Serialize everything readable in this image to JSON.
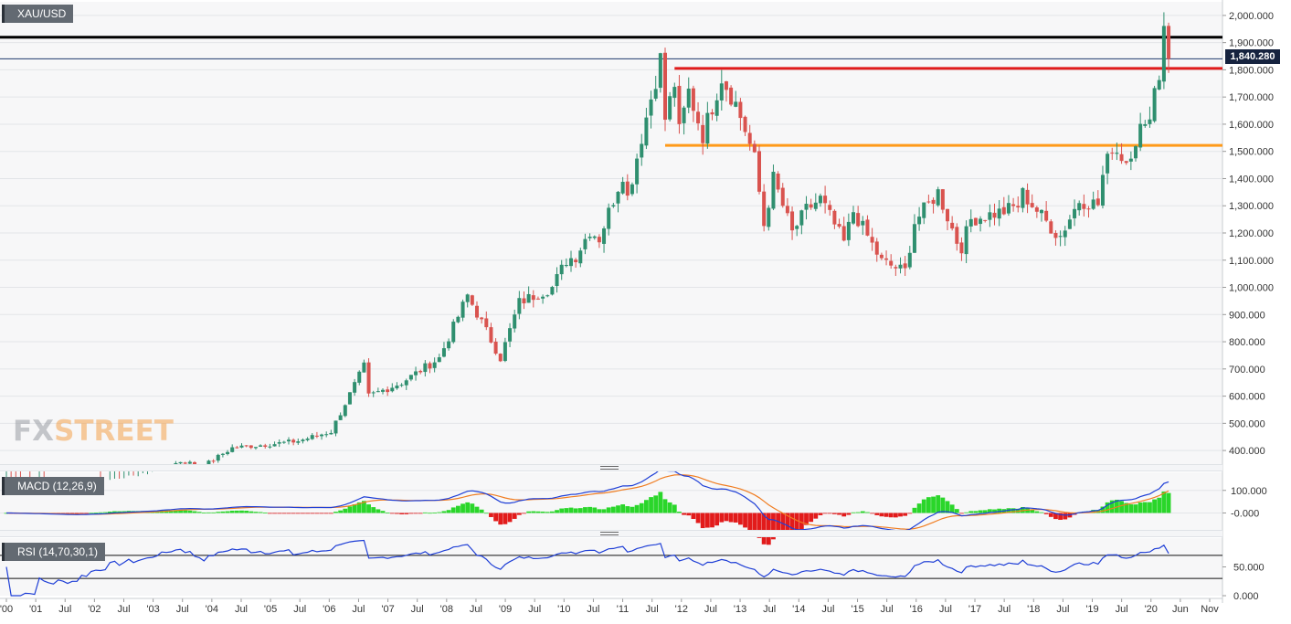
{
  "instrument": {
    "symbol": "XAU/USD",
    "last_price_label": "1,840.280"
  },
  "watermark": {
    "part1": "FX",
    "part2": "STREET"
  },
  "panes": {
    "price": {
      "label": "XAU/USD"
    },
    "macd": {
      "label": "MACD (12,26,9)"
    },
    "rsi": {
      "label": "RSI (14,70,30,1)"
    }
  },
  "chart_data": [
    {
      "type": "candlestick",
      "title": "XAU/USD",
      "interval": "monthly",
      "ylim": [
        350,
        2050
      ],
      "y_ticks": [
        "2,000.000",
        "1,900.000",
        "1,800.000",
        "1,700.000",
        "1,600.000",
        "1,500.000",
        "1,400.000",
        "1,300.000",
        "1,200.000",
        "1,100.000",
        "1,000.000",
        "900.000",
        "800.000",
        "700.000",
        "600.000",
        "500.000",
        "400.000"
      ],
      "last_price": 1840.28,
      "horizontal_levels": [
        {
          "value": 1920,
          "color": "#000000",
          "from": "2000-01"
        },
        {
          "value": 1840.28,
          "color": "#1f3a6e",
          "from": "2000-01"
        },
        {
          "value": 1805,
          "color": "#e01b1b",
          "from": "2011-11"
        },
        {
          "value": 1522,
          "color": "#ff9a1a",
          "from": "2011-09"
        }
      ],
      "anchors": [
        [
          "2000-01",
          290
        ],
        [
          "2001-03",
          260
        ],
        [
          "2002-07",
          310
        ],
        [
          "2003-02",
          360
        ],
        [
          "2003-07",
          345
        ],
        [
          "2004-01",
          410
        ],
        [
          "2004-10",
          425
        ],
        [
          "2005-03",
          435
        ],
        [
          "2005-10",
          470
        ],
        [
          "2006-05",
          710
        ],
        [
          "2006-06",
          600
        ],
        [
          "2007-01",
          650
        ],
        [
          "2007-09",
          740
        ],
        [
          "2008-03",
          970
        ],
        [
          "2008-10",
          740
        ],
        [
          "2009-02",
          945
        ],
        [
          "2009-09",
          1000
        ],
        [
          "2009-12",
          1100
        ],
        [
          "2010-02",
          1115
        ],
        [
          "2010-05",
          1210
        ],
        [
          "2010-07",
          1180
        ],
        [
          "2010-12",
          1420
        ],
        [
          "2011-01",
          1330
        ],
        [
          "2011-04",
          1555
        ],
        [
          "2011-08",
          1840
        ],
        [
          "2011-09",
          1620
        ],
        [
          "2011-11",
          1750
        ],
        [
          "2011-12",
          1570
        ],
        [
          "2012-02",
          1720
        ],
        [
          "2012-05",
          1560
        ],
        [
          "2012-09",
          1775
        ],
        [
          "2012-12",
          1675
        ],
        [
          "2013-02",
          1580
        ],
        [
          "2013-04",
          1470
        ],
        [
          "2013-06",
          1230
        ],
        [
          "2013-08",
          1400
        ],
        [
          "2013-12",
          1200
        ],
        [
          "2014-03",
          1285
        ],
        [
          "2014-06",
          1325
        ],
        [
          "2014-11",
          1165
        ],
        [
          "2015-01",
          1280
        ],
        [
          "2015-07",
          1095
        ],
        [
          "2015-11",
          1065
        ],
        [
          "2015-12",
          1060
        ],
        [
          "2016-02",
          1240
        ],
        [
          "2016-07",
          1350
        ],
        [
          "2016-11",
          1170
        ],
        [
          "2016-12",
          1150
        ],
        [
          "2017-02",
          1250
        ],
        [
          "2017-09",
          1280
        ],
        [
          "2017-12",
          1300
        ],
        [
          "2018-01",
          1345
        ],
        [
          "2018-08",
          1200
        ],
        [
          "2018-09",
          1190
        ],
        [
          "2019-01",
          1320
        ],
        [
          "2019-05",
          1305
        ],
        [
          "2019-06",
          1410
        ],
        [
          "2019-08",
          1520
        ],
        [
          "2019-11",
          1465
        ],
        [
          "2020-02",
          1585
        ],
        [
          "2020-03",
          1575
        ],
        [
          "2020-05",
          1730
        ],
        [
          "2020-06",
          1780
        ],
        [
          "2020-07",
          1975
        ],
        [
          "2020-08",
          1840.28
        ]
      ],
      "x_ticks": [
        "'00",
        "'01",
        "Jul",
        "'02",
        "Jul",
        "'03",
        "Jul",
        "'04",
        "Jul",
        "'05",
        "Jul",
        "'06",
        "Jul",
        "'07",
        "Jul",
        "'08",
        "Jul",
        "'09",
        "Jul",
        "'10",
        "Jul",
        "'11",
        "Jul",
        "'12",
        "Jul",
        "'13",
        "Jul",
        "'14",
        "Jul",
        "'15",
        "Jul",
        "'16",
        "Jul",
        "'17",
        "Jul",
        "'18",
        "Jul",
        "'19",
        "Jul",
        "'20",
        "Jun",
        "Nov"
      ],
      "up_color": "#2f8f6f",
      "down_color": "#d9534f"
    },
    {
      "type": "line+histogram",
      "title": "MACD (12,26,9)",
      "params": [
        12,
        26,
        9
      ],
      "series": [
        {
          "role": "macd",
          "color": "#1f3fd6"
        },
        {
          "role": "signal",
          "color": "#f07d21"
        },
        {
          "role": "histogram",
          "up_color": "#2ad62a",
          "down_color": "#e21b1b"
        }
      ],
      "y_ticks": [
        "100.000",
        "-0.000"
      ],
      "ylim": [
        -75,
        180
      ]
    },
    {
      "type": "line",
      "title": "RSI (14,70,30,1)",
      "params": [
        14,
        70,
        30,
        1
      ],
      "levels": [
        70,
        30
      ],
      "series": [
        {
          "role": "rsi",
          "color": "#1f3fd6"
        }
      ],
      "y_ticks": [
        "50.000",
        "0.000"
      ],
      "ylim": [
        0,
        100
      ]
    }
  ]
}
